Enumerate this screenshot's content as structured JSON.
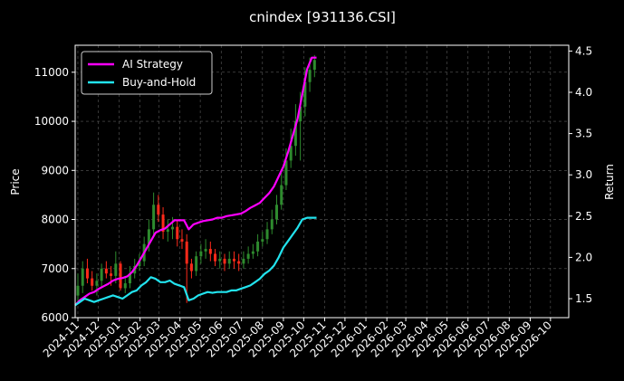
{
  "chart_data": {
    "type": "line",
    "title": "cnindex [931136.CSI]",
    "ylabel_left": "Price",
    "ylabel_right": "Return",
    "ylim_left": [
      6000,
      11550
    ],
    "ylim_right": [
      1.27,
      4.57
    ],
    "xlim": [
      "2024-10-28",
      "2026-10-28"
    ],
    "grid": true,
    "legend_position": "top-left",
    "yticks_left": [
      6000,
      7000,
      8000,
      9000,
      10000,
      11000
    ],
    "yticks_right": [
      1.5,
      2.0,
      2.5,
      3.0,
      3.5,
      4.0,
      4.5
    ],
    "xticks": [
      "2024-11",
      "2024-12",
      "2025-01",
      "2025-02",
      "2025-03",
      "2025-04",
      "2025-05",
      "2025-06",
      "2025-07",
      "2025-08",
      "2025-09",
      "2025-10",
      "2025-11",
      "2025-12",
      "2026-01",
      "2026-02",
      "2026-03",
      "2026-04",
      "2026-05",
      "2026-06",
      "2026-07",
      "2026-08",
      "2026-09",
      "2026-10"
    ],
    "candles": {
      "up_color": "#2e8b2e",
      "down_color": "#ff2a1a",
      "x": [
        "2024-10-28",
        "2024-11-04",
        "2024-11-11",
        "2024-11-18",
        "2024-11-25",
        "2024-12-02",
        "2024-12-09",
        "2024-12-16",
        "2024-12-23",
        "2024-12-30",
        "2025-01-06",
        "2025-01-13",
        "2025-01-20",
        "2025-01-27",
        "2025-02-03",
        "2025-02-10",
        "2025-02-17",
        "2025-02-24",
        "2025-03-03",
        "2025-03-10",
        "2025-03-17",
        "2025-03-24",
        "2025-03-31",
        "2025-04-07",
        "2025-04-14",
        "2025-04-21",
        "2025-04-28",
        "2025-05-05",
        "2025-05-12",
        "2025-05-19",
        "2025-05-26",
        "2025-06-02",
        "2025-06-09",
        "2025-06-16",
        "2025-06-23",
        "2025-06-30",
        "2025-07-07",
        "2025-07-14",
        "2025-07-21",
        "2025-07-28",
        "2025-08-04",
        "2025-08-11",
        "2025-08-18",
        "2025-08-25",
        "2025-09-01",
        "2025-09-08",
        "2025-09-15",
        "2025-09-22",
        "2025-09-29",
        "2025-10-06",
        "2025-10-13"
      ],
      "open": [
        6450,
        6650,
        7000,
        6800,
        6650,
        6750,
        7000,
        6900,
        6850,
        7100,
        6600,
        6700,
        6900,
        7050,
        7150,
        7500,
        7800,
        8300,
        8100,
        7750,
        7800,
        7850,
        7600,
        7550,
        7100,
        6950,
        7250,
        7350,
        7400,
        7300,
        7150,
        7200,
        7100,
        7200,
        7150,
        7100,
        7200,
        7300,
        7350,
        7550,
        7600,
        7800,
        8000,
        8300,
        8700,
        9200,
        9500,
        10000,
        10300,
        10800,
        11050
      ],
      "close": [
        6650,
        7000,
        6800,
        6650,
        6750,
        7000,
        6900,
        6850,
        7100,
        6600,
        6700,
        6900,
        7050,
        7150,
        7500,
        7800,
        8300,
        8100,
        7750,
        7800,
        7850,
        7600,
        7550,
        7100,
        6950,
        7250,
        7350,
        7400,
        7300,
        7150,
        7200,
        7100,
        7200,
        7150,
        7100,
        7200,
        7300,
        7350,
        7550,
        7600,
        7800,
        8000,
        8300,
        8700,
        9200,
        9500,
        10000,
        10300,
        10800,
        11050,
        11250
      ],
      "high": [
        6900,
        7150,
        7200,
        6950,
        6900,
        7100,
        7150,
        7050,
        7350,
        7150,
        6850,
        7050,
        7200,
        7300,
        7650,
        8000,
        8550,
        8500,
        8250,
        8000,
        8050,
        8000,
        7800,
        7700,
        7200,
        7350,
        7500,
        7600,
        7550,
        7400,
        7350,
        7300,
        7350,
        7350,
        7300,
        7350,
        7450,
        7500,
        7700,
        7750,
        7950,
        8200,
        8500,
        8950,
        9450,
        9850,
        10350,
        10600,
        11100,
        11300,
        11350
      ],
      "low": [
        6300,
        6500,
        6700,
        6550,
        6450,
        6600,
        6800,
        6650,
        6700,
        6550,
        6500,
        6600,
        6800,
        6950,
        7050,
        7350,
        7650,
        7950,
        7600,
        7550,
        7600,
        7450,
        7400,
        6300,
        6800,
        6850,
        7100,
        7200,
        7150,
        7050,
        7000,
        6950,
        7000,
        7000,
        6950,
        7000,
        7100,
        7200,
        7250,
        7450,
        7500,
        7700,
        7900,
        8200,
        8600,
        9050,
        9300,
        9200,
        10100,
        10600,
        10900
      ]
    },
    "series": [
      {
        "name": "AI Strategy",
        "color": "#ff00ff",
        "axis": "right",
        "x": [
          "2024-10-28",
          "2024-11-04",
          "2024-11-11",
          "2024-11-18",
          "2024-11-25",
          "2024-12-02",
          "2024-12-09",
          "2024-12-16",
          "2024-12-23",
          "2024-12-30",
          "2025-01-06",
          "2025-01-13",
          "2025-01-20",
          "2025-01-27",
          "2025-02-03",
          "2025-02-10",
          "2025-02-17",
          "2025-02-24",
          "2025-03-03",
          "2025-03-10",
          "2025-03-17",
          "2025-03-24",
          "2025-03-31",
          "2025-04-07",
          "2025-04-14",
          "2025-04-21",
          "2025-04-28",
          "2025-05-05",
          "2025-05-12",
          "2025-05-19",
          "2025-05-26",
          "2025-06-02",
          "2025-06-09",
          "2025-06-16",
          "2025-06-23",
          "2025-06-30",
          "2025-07-07",
          "2025-07-14",
          "2025-07-21",
          "2025-07-28",
          "2025-08-04",
          "2025-08-11",
          "2025-08-18",
          "2025-08-25",
          "2025-09-01",
          "2025-09-08",
          "2025-09-15",
          "2025-09-22",
          "2025-09-29",
          "2025-10-06",
          "2025-10-13",
          "2025-10-20"
        ],
        "values": [
          1.42,
          1.48,
          1.52,
          1.56,
          1.58,
          1.62,
          1.65,
          1.68,
          1.72,
          1.74,
          1.75,
          1.77,
          1.82,
          1.9,
          2.0,
          2.1,
          2.2,
          2.3,
          2.33,
          2.35,
          2.4,
          2.45,
          2.45,
          2.45,
          2.34,
          2.4,
          2.42,
          2.44,
          2.45,
          2.46,
          2.48,
          2.48,
          2.5,
          2.51,
          2.52,
          2.53,
          2.56,
          2.6,
          2.63,
          2.66,
          2.72,
          2.78,
          2.86,
          2.98,
          3.1,
          3.28,
          3.48,
          3.68,
          3.98,
          4.28,
          4.42,
          4.42
        ]
      },
      {
        "name": "Buy-and-Hold",
        "color": "#22e3ee",
        "axis": "right",
        "x": [
          "2024-10-28",
          "2024-11-04",
          "2024-11-11",
          "2024-11-18",
          "2024-11-25",
          "2024-12-02",
          "2024-12-09",
          "2024-12-16",
          "2024-12-23",
          "2024-12-30",
          "2025-01-06",
          "2025-01-13",
          "2025-01-20",
          "2025-01-27",
          "2025-02-03",
          "2025-02-10",
          "2025-02-17",
          "2025-02-24",
          "2025-03-03",
          "2025-03-10",
          "2025-03-17",
          "2025-03-24",
          "2025-03-31",
          "2025-04-07",
          "2025-04-14",
          "2025-04-21",
          "2025-04-28",
          "2025-05-05",
          "2025-05-12",
          "2025-05-19",
          "2025-05-26",
          "2025-06-02",
          "2025-06-09",
          "2025-06-16",
          "2025-06-23",
          "2025-06-30",
          "2025-07-07",
          "2025-07-14",
          "2025-07-21",
          "2025-07-28",
          "2025-08-04",
          "2025-08-11",
          "2025-08-18",
          "2025-08-25",
          "2025-09-01",
          "2025-09-08",
          "2025-09-15",
          "2025-09-22",
          "2025-09-29",
          "2025-10-06",
          "2025-10-13",
          "2025-10-20"
        ],
        "values": [
          1.42,
          1.46,
          1.5,
          1.48,
          1.46,
          1.48,
          1.5,
          1.52,
          1.54,
          1.52,
          1.5,
          1.54,
          1.58,
          1.6,
          1.66,
          1.7,
          1.76,
          1.74,
          1.7,
          1.7,
          1.72,
          1.68,
          1.66,
          1.64,
          1.48,
          1.5,
          1.54,
          1.56,
          1.58,
          1.57,
          1.58,
          1.58,
          1.58,
          1.6,
          1.6,
          1.62,
          1.64,
          1.66,
          1.7,
          1.74,
          1.8,
          1.84,
          1.9,
          2.0,
          2.12,
          2.2,
          2.28,
          2.36,
          2.46,
          2.48,
          2.48,
          2.48
        ]
      }
    ]
  }
}
